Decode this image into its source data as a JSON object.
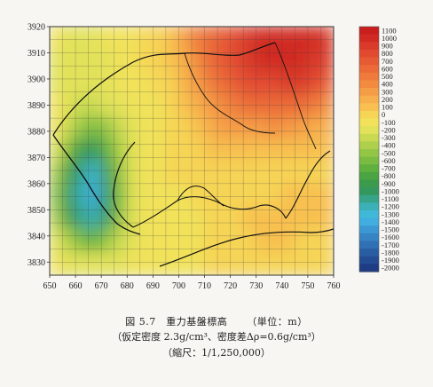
{
  "chart_data": {
    "type": "heatmap",
    "title": "",
    "xlabel": "",
    "ylabel": "",
    "xlim": [
      650,
      760
    ],
    "ylim": [
      3825,
      3920
    ],
    "x_ticks": [
      "650",
      "660",
      "670",
      "680",
      "690",
      "700",
      "710",
      "720",
      "730",
      "740",
      "750",
      "760"
    ],
    "y_ticks": [
      "3920",
      "3910",
      "3900",
      "3890",
      "3880",
      "3870",
      "3860",
      "3850",
      "3840",
      "3830"
    ],
    "grid": true,
    "legend": "right",
    "colorbar": {
      "labels": [
        "1100",
        "1000",
        "900",
        "800",
        "700",
        "600",
        "500",
        "400",
        "300",
        "200",
        "100",
        "0",
        "-100",
        "-200",
        "-300",
        "-400",
        "-500",
        "-600",
        "-700",
        "-800",
        "-900",
        "-1000",
        "-1100",
        "-1200",
        "-1300",
        "-1400",
        "-1500",
        "-1600",
        "-1700",
        "-1800",
        "-1900",
        "-2000"
      ],
      "colors": [
        "#c81e1e",
        "#d12a22",
        "#d93a2a",
        "#e24a30",
        "#e65a34",
        "#eb6a38",
        "#ef7a3c",
        "#f28a40",
        "#f59c46",
        "#f7ae4c",
        "#f8c050",
        "#f6d455",
        "#f1e25a",
        "#e2e25a",
        "#c9da52",
        "#aed04c",
        "#94c646",
        "#7abc42",
        "#60b040",
        "#4aa442",
        "#3c9a4c",
        "#34985e",
        "#37a489",
        "#3bb0b6",
        "#40b8d8",
        "#42aee0",
        "#3c98d4",
        "#3684c4",
        "#3070b4",
        "#2a5ea2",
        "#244c92",
        "#1e3c84"
      ]
    },
    "values_m": [
      [
        -150,
        -200,
        -200,
        -200,
        -150,
        -100,
        -100,
        -50,
        0,
        100,
        300,
        500,
        600,
        700,
        800,
        900,
        1000,
        1000,
        1000,
        1000,
        1000,
        900
      ],
      [
        -200,
        -250,
        -200,
        -200,
        -200,
        -150,
        -100,
        -50,
        0,
        100,
        200,
        400,
        600,
        700,
        800,
        900,
        1000,
        1000,
        1000,
        1000,
        900,
        900
      ],
      [
        -200,
        -250,
        -250,
        -200,
        -200,
        -150,
        -150,
        -100,
        -50,
        0,
        150,
        300,
        450,
        600,
        700,
        800,
        800,
        800,
        900,
        900,
        800,
        700
      ],
      [
        -150,
        -250,
        -300,
        -300,
        -250,
        -200,
        -150,
        -150,
        -100,
        0,
        100,
        200,
        300,
        400,
        500,
        600,
        600,
        600,
        600,
        600,
        500,
        400
      ],
      [
        -150,
        -300,
        -500,
        -600,
        -500,
        -300,
        -200,
        -150,
        -100,
        -50,
        0,
        100,
        200,
        250,
        300,
        300,
        300,
        350,
        300,
        300,
        200,
        200
      ],
      [
        -200,
        -600,
        -900,
        -1000,
        -700,
        -400,
        -200,
        -150,
        -100,
        -50,
        -50,
        0,
        50,
        100,
        100,
        100,
        100,
        100,
        50,
        50,
        50,
        50
      ],
      [
        -400,
        -900,
        -1100,
        -1300,
        -900,
        -500,
        -250,
        -150,
        -100,
        -50,
        -50,
        -50,
        0,
        0,
        0,
        0,
        0,
        0,
        0,
        0,
        0,
        0
      ],
      [
        -500,
        -1000,
        -1200,
        -1400,
        -1000,
        -600,
        -250,
        -150,
        -150,
        -100,
        -100,
        -50,
        -50,
        -50,
        -50,
        0,
        0,
        0,
        50,
        50,
        50,
        50
      ],
      [
        -400,
        -900,
        -1100,
        -1200,
        -1000,
        -500,
        -250,
        -150,
        -150,
        -100,
        -100,
        -100,
        -50,
        0,
        0,
        50,
        100,
        100,
        100,
        100,
        50,
        50
      ],
      [
        -250,
        -400,
        -600,
        -700,
        -500,
        -300,
        -200,
        -150,
        -150,
        -150,
        -100,
        -100,
        -50,
        -50,
        0,
        0,
        50,
        50,
        50,
        0,
        0,
        0
      ],
      [
        -150,
        -200,
        -250,
        -250,
        -200,
        -200,
        -150,
        -150,
        -100,
        -100,
        -100,
        -100,
        -50,
        -50,
        -50,
        -50,
        -50,
        -50,
        0,
        0,
        0,
        0
      ]
    ],
    "caption_lines": {
      "line1_a": "図 5.7　重力基盤標高",
      "line1_b": "（単位：m）",
      "line2": "（仮定密度 2.3g/cm³、密度差Δρ=0.6g/cm³）",
      "line3": "（縮尺：1/1,250,000）"
    }
  }
}
